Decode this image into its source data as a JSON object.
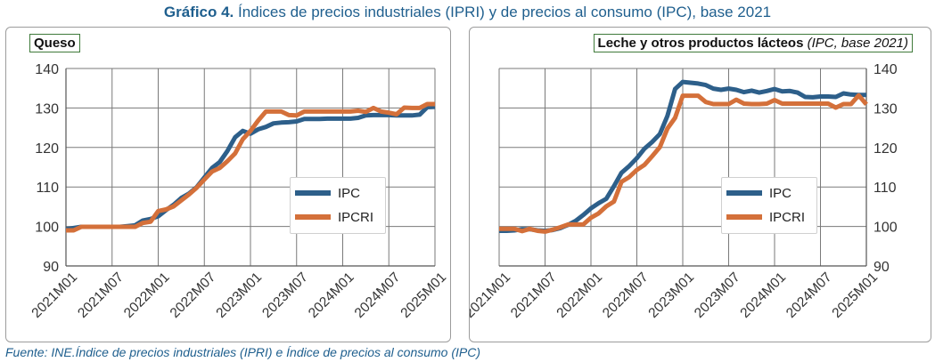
{
  "figure": {
    "title_bold": "Gráfico 4.",
    "title_rest": " Índices de precios industriales (IPRI) y de precios al consumo (IPC), base 2021",
    "source": "Fuente: INE.Índice de precios industriales (IPRI) e Índice de precios al consumo (IPC)"
  },
  "colors": {
    "ipc": "#2d5f8a",
    "ipcri": "#d4703a",
    "grid": "#7a7a7a",
    "axis": "#555555"
  },
  "chart_data": [
    {
      "type": "line",
      "title": "Queso",
      "x_ticks": [
        "2021M01",
        "2021M07",
        "2022M01",
        "2022M07",
        "2023M01",
        "2023M07",
        "2024M01",
        "2024M07",
        "2025M01"
      ],
      "y_ticks": [
        90,
        100,
        110,
        120,
        130,
        140
      ],
      "ylim": [
        90,
        140
      ],
      "y_axis_side": "left",
      "legend": "center-right",
      "x": [
        0,
        1,
        2,
        3,
        4,
        5,
        6,
        7,
        8,
        9,
        10,
        11,
        12,
        13,
        14,
        15,
        16,
        17,
        18,
        19,
        20,
        21,
        22,
        23,
        24,
        25,
        26,
        27,
        28,
        29,
        30,
        31,
        32,
        33,
        34,
        35,
        36,
        37,
        38,
        39,
        40,
        41,
        42,
        43,
        44,
        45,
        46,
        47,
        48
      ],
      "series": [
        {
          "name": "IPC",
          "values": [
            99.3,
            99.6,
            99.9,
            99.9,
            99.9,
            99.9,
            99.9,
            99.9,
            100.1,
            100.3,
            101.5,
            101.9,
            102.6,
            104.1,
            105.5,
            107.2,
            108.3,
            109.9,
            112.4,
            114.8,
            116.3,
            119.1,
            122.6,
            124.2,
            123.5,
            124.6,
            125.2,
            126.1,
            126.3,
            126.4,
            126.6,
            127.2,
            127.2,
            127.2,
            127.3,
            127.3,
            127.3,
            127.3,
            127.5,
            128.1,
            128.2,
            128.2,
            128.2,
            128.1,
            128.1,
            128.1,
            128.3,
            130.2,
            130.3
          ]
        },
        {
          "name": "IPCRI",
          "values": [
            99.0,
            99.0,
            99.9,
            99.9,
            99.9,
            99.9,
            99.9,
            99.9,
            99.9,
            99.9,
            100.9,
            101.2,
            103.9,
            104.3,
            105.1,
            106.6,
            108.1,
            109.8,
            111.9,
            113.9,
            114.8,
            116.5,
            118.5,
            122.1,
            124.2,
            126.8,
            129.1,
            129.1,
            129.1,
            128.2,
            128.1,
            129.1,
            129.1,
            129.1,
            129.1,
            129.1,
            129.1,
            129.1,
            129.3,
            129.0,
            130.0,
            129.1,
            128.8,
            128.4,
            130.1,
            130.0,
            130.0,
            131.0,
            131.0
          ]
        }
      ]
    },
    {
      "type": "line",
      "title": "Leche y otros productos lácteos",
      "subtitle": "(IPC, base 2021)",
      "x_ticks": [
        "2021M01",
        "2021M07",
        "2022M01",
        "2022M07",
        "2023M01",
        "2023M07",
        "2024M01",
        "2024M07",
        "2025M01"
      ],
      "y_ticks": [
        90,
        100,
        110,
        120,
        130,
        140
      ],
      "ylim": [
        90,
        140
      ],
      "y_axis_side": "right",
      "legend": "center-right",
      "x": [
        0,
        1,
        2,
        3,
        4,
        5,
        6,
        7,
        8,
        9,
        10,
        11,
        12,
        13,
        14,
        15,
        16,
        17,
        18,
        19,
        20,
        21,
        22,
        23,
        24,
        25,
        26,
        27,
        28,
        29,
        30,
        31,
        32,
        33,
        34,
        35,
        36,
        37,
        38,
        39,
        40,
        41,
        42,
        43,
        44,
        45,
        46,
        47,
        48
      ],
      "series": [
        {
          "name": "IPC",
          "values": [
            98.9,
            98.9,
            99.0,
            99.3,
            99.3,
            99.0,
            98.9,
            99.1,
            99.6,
            100.4,
            101.4,
            102.9,
            104.6,
            105.9,
            107.0,
            110.2,
            113.6,
            115.3,
            117.3,
            119.7,
            121.4,
            123.4,
            128.0,
            134.8,
            136.6,
            136.4,
            136.2,
            135.8,
            134.9,
            134.6,
            134.9,
            134.6,
            134.0,
            134.4,
            133.9,
            134.3,
            134.8,
            134.2,
            134.3,
            133.9,
            132.8,
            132.7,
            132.9,
            132.9,
            132.8,
            133.7,
            133.4,
            133.3,
            133.3
          ]
        },
        {
          "name": "IPCRI",
          "values": [
            99.4,
            99.4,
            99.4,
            98.8,
            99.4,
            98.9,
            98.7,
            99.2,
            99.8,
            100.5,
            100.5,
            100.5,
            102.2,
            103.3,
            105.1,
            106.3,
            111.3,
            112.5,
            114.3,
            115.6,
            117.8,
            120.1,
            124.8,
            127.5,
            133.1,
            133.1,
            133.1,
            131.5,
            131.0,
            131.0,
            131.0,
            132.1,
            131.1,
            131.0,
            131.0,
            131.1,
            132.0,
            131.1,
            131.1,
            131.1,
            131.1,
            131.1,
            131.1,
            131.1,
            130.1,
            131.0,
            131.0,
            133.2,
            130.9
          ]
        }
      ]
    }
  ]
}
